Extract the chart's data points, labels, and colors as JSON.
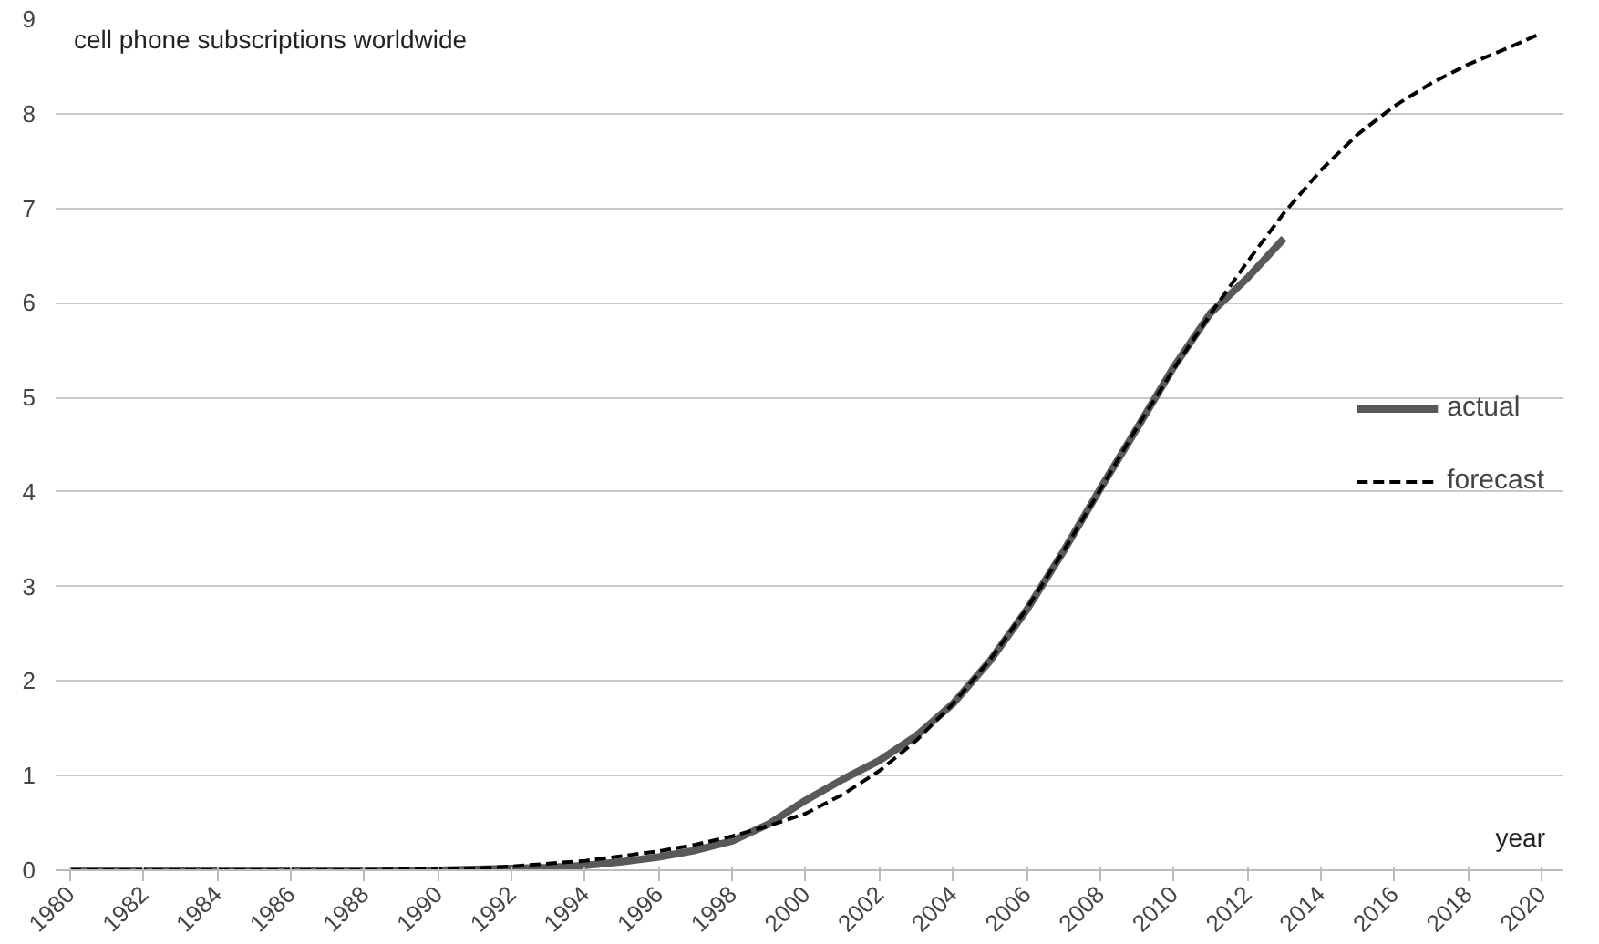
{
  "chart_data": {
    "type": "line",
    "title": "cell phone subscriptions worldwide",
    "xlabel": "year",
    "xlim": [
      1979.6,
      2020.6
    ],
    "xticks": [
      1980,
      1982,
      1984,
      1986,
      1988,
      1990,
      1992,
      1994,
      1996,
      1998,
      2000,
      2002,
      2004,
      2006,
      2008,
      2010,
      2012,
      2014,
      2016,
      2018,
      2020
    ],
    "ylim": [
      0,
      9
    ],
    "yticks": [
      0,
      1,
      2,
      3,
      4,
      5,
      6,
      7,
      8,
      9
    ],
    "grid": "y",
    "legend": "right",
    "series": [
      {
        "name": "actual",
        "color": "#595959",
        "line_style": "solid",
        "x": [
          1980,
          1981,
          1982,
          1983,
          1984,
          1985,
          1986,
          1987,
          1988,
          1989,
          1990,
          1991,
          1992,
          1993,
          1994,
          1995,
          1996,
          1997,
          1998,
          1999,
          2000,
          2001,
          2002,
          2003,
          2004,
          2005,
          2006,
          2007,
          2008,
          2009,
          2010,
          2011,
          2012,
          2013
        ],
        "values": [
          0,
          0,
          0,
          0,
          0,
          0,
          0,
          0,
          0,
          0,
          0,
          0.01,
          0.02,
          0.03,
          0.05,
          0.09,
          0.14,
          0.21,
          0.31,
          0.49,
          0.74,
          0.96,
          1.16,
          1.42,
          1.76,
          2.21,
          2.75,
          3.37,
          4.03,
          4.67,
          5.32,
          5.89,
          6.26,
          6.68
        ]
      },
      {
        "name": "forecast",
        "color": "#000000",
        "line_style": "dashed",
        "x": [
          1980,
          1981,
          1982,
          1983,
          1984,
          1985,
          1986,
          1987,
          1988,
          1989,
          1990,
          1991,
          1992,
          1993,
          1994,
          1995,
          1996,
          1997,
          1998,
          1999,
          2000,
          2001,
          2002,
          2003,
          2004,
          2005,
          2006,
          2007,
          2008,
          2009,
          2010,
          2011,
          2012,
          2013,
          2014,
          2015,
          2016,
          2017,
          2018,
          2019,
          2020
        ],
        "values": [
          0,
          0,
          0,
          0,
          0,
          0,
          0,
          0,
          0,
          0.01,
          0.01,
          0.02,
          0.04,
          0.07,
          0.1,
          0.15,
          0.2,
          0.27,
          0.36,
          0.47,
          0.6,
          0.8,
          1.05,
          1.37,
          1.76,
          2.22,
          2.76,
          3.37,
          4.02,
          4.68,
          5.3,
          5.88,
          6.43,
          6.95,
          7.4,
          7.78,
          8.08,
          8.32,
          8.52,
          8.68,
          8.85
        ]
      }
    ]
  }
}
